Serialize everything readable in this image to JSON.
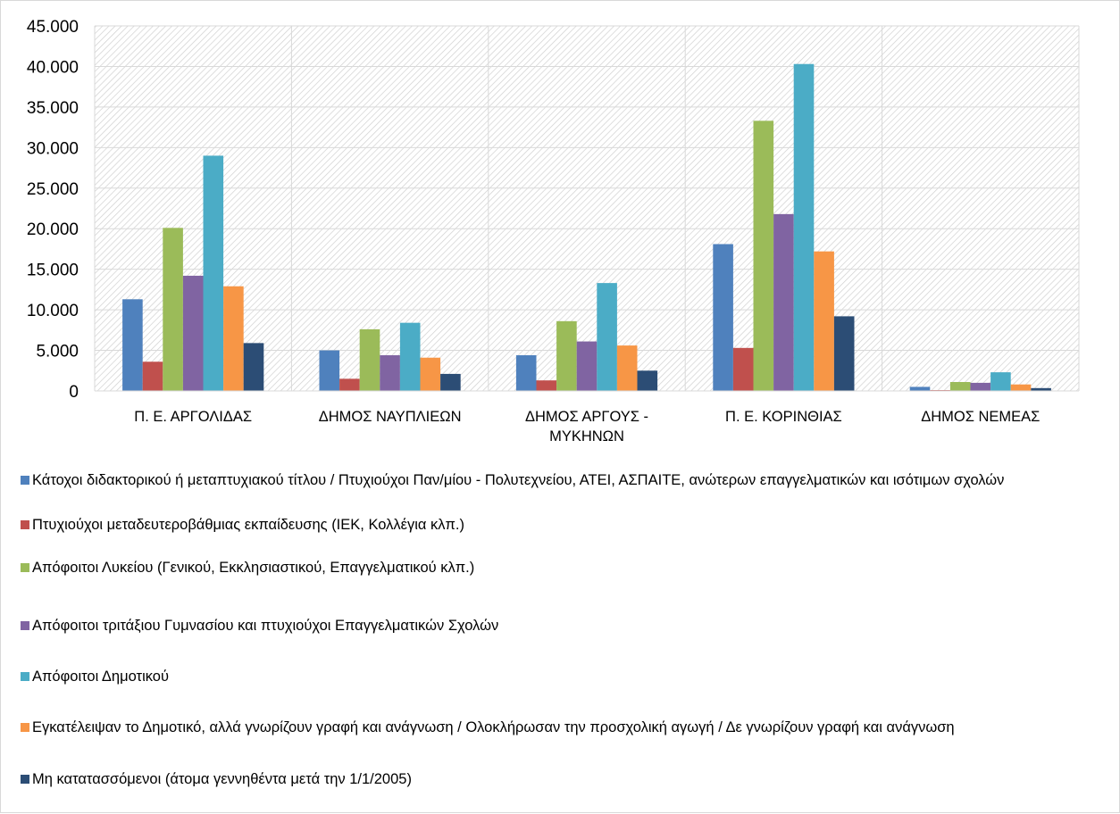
{
  "chart_data": {
    "type": "bar",
    "categories": [
      [
        "Π. Ε. ΑΡΓΟΛΙΔΑΣ"
      ],
      [
        "ΔΗΜΟΣ ΝΑΥΠΛΙΕΩΝ"
      ],
      [
        "ΔΗΜΟΣ ΑΡΓΟΥΣ -",
        "ΜΥΚΗΝΩΝ"
      ],
      [
        "Π. Ε. ΚΟΡΙΝΘΙΑΣ"
      ],
      [
        "ΔΗΜΟΣ ΝΕΜΕΑΣ"
      ]
    ],
    "series": [
      {
        "name": "Κάτοχοι διδακτορικού ή μεταπτυχιακού τίτλου / Πτυχιούχοι Παν/μίου - Πολυτεχνείου, ΑΤΕΙ, ΑΣΠΑΙΤΕ, ανώτερων επαγγελματικών και ισότιμων σχολών",
        "color": "#4f81bd",
        "values": [
          11300,
          5000,
          4400,
          18100,
          500
        ]
      },
      {
        "name": "Πτυχιούχοι μεταδευτεροβάθμιας εκπαίδευσης (ΙΕΚ, Κολλέγια κλπ.)",
        "color": "#c0504d",
        "values": [
          3600,
          1500,
          1300,
          5300,
          100
        ]
      },
      {
        "name": "Απόφοιτοι Λυκείου (Γενικού, Εκκλησιαστικού, Επαγγελματικού κλπ.)",
        "color": "#9bbb59",
        "values": [
          20100,
          7600,
          8600,
          33300,
          1100
        ]
      },
      {
        "name": "Απόφοιτοι τριτάξιου Γυμνασίου και πτυχιούχοι Επαγγελματικών Σχολών",
        "color": "#8064a2",
        "values": [
          14200,
          4400,
          6100,
          21800,
          1000
        ]
      },
      {
        "name": "Απόφοιτοι Δημοτικού",
        "color": "#4bacc6",
        "values": [
          29000,
          8400,
          13300,
          40300,
          2300
        ]
      },
      {
        "name": "Εγκατέλειψαν το Δημοτικό, αλλά γνωρίζουν γραφή και ανάγνωση / Ολοκλήρωσαν την προσχολική αγωγή / Δε γνωρίζουν γραφή και ανάγνωση",
        "color": "#f79646",
        "values": [
          12900,
          4100,
          5600,
          17200,
          800
        ]
      },
      {
        "name": "Μη κατατασσόμενοι (άτομα γεννηθέντα μετά την 1/1/2005)",
        "color": "#2c4d75",
        "values": [
          5900,
          2100,
          2500,
          9200,
          350
        ]
      }
    ],
    "y_ticks": [
      "0",
      "5.000",
      "10.000",
      "15.000",
      "20.000",
      "25.000",
      "30.000",
      "35.000",
      "40.000",
      "45.000"
    ],
    "ylim": [
      0,
      45000
    ],
    "title": "",
    "xlabel": "",
    "ylabel": "",
    "grid": true,
    "legend_position": "bottom"
  }
}
